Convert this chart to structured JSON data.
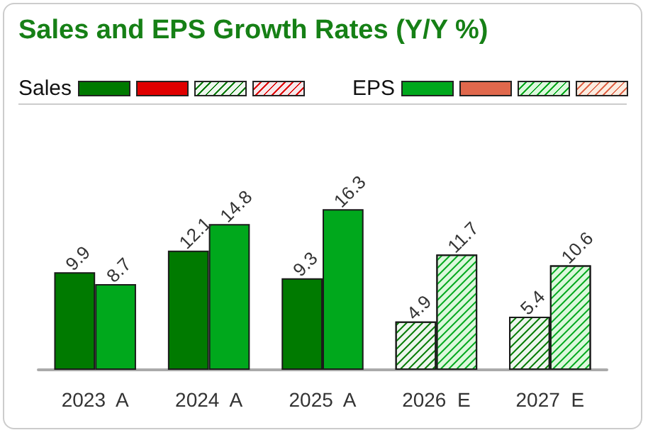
{
  "chart_data": {
    "type": "bar",
    "title": "Sales and EPS Growth Rates (Y/Y %)",
    "categories": [
      "2023  A",
      "2024  A",
      "2025  A",
      "2026  E",
      "2027  E"
    ],
    "series": [
      {
        "name": "Sales",
        "color": "#007a00",
        "values": [
          9.9,
          12.1,
          9.3,
          4.9,
          5.4
        ],
        "colors": [
          "#007a00",
          "#007a00",
          "#007a00",
          "#eef6ee",
          "#eef6ee"
        ]
      },
      {
        "name": "EPS",
        "color": "#00a81c",
        "values": [
          8.7,
          14.8,
          16.3,
          11.7,
          10.6
        ],
        "colors": [
          "#00a81c",
          "#00a81c",
          "#00a81c",
          "#dcf8dc",
          "#dcf8dc"
        ]
      }
    ],
    "data_labels": true,
    "legend": "top"
  }
}
